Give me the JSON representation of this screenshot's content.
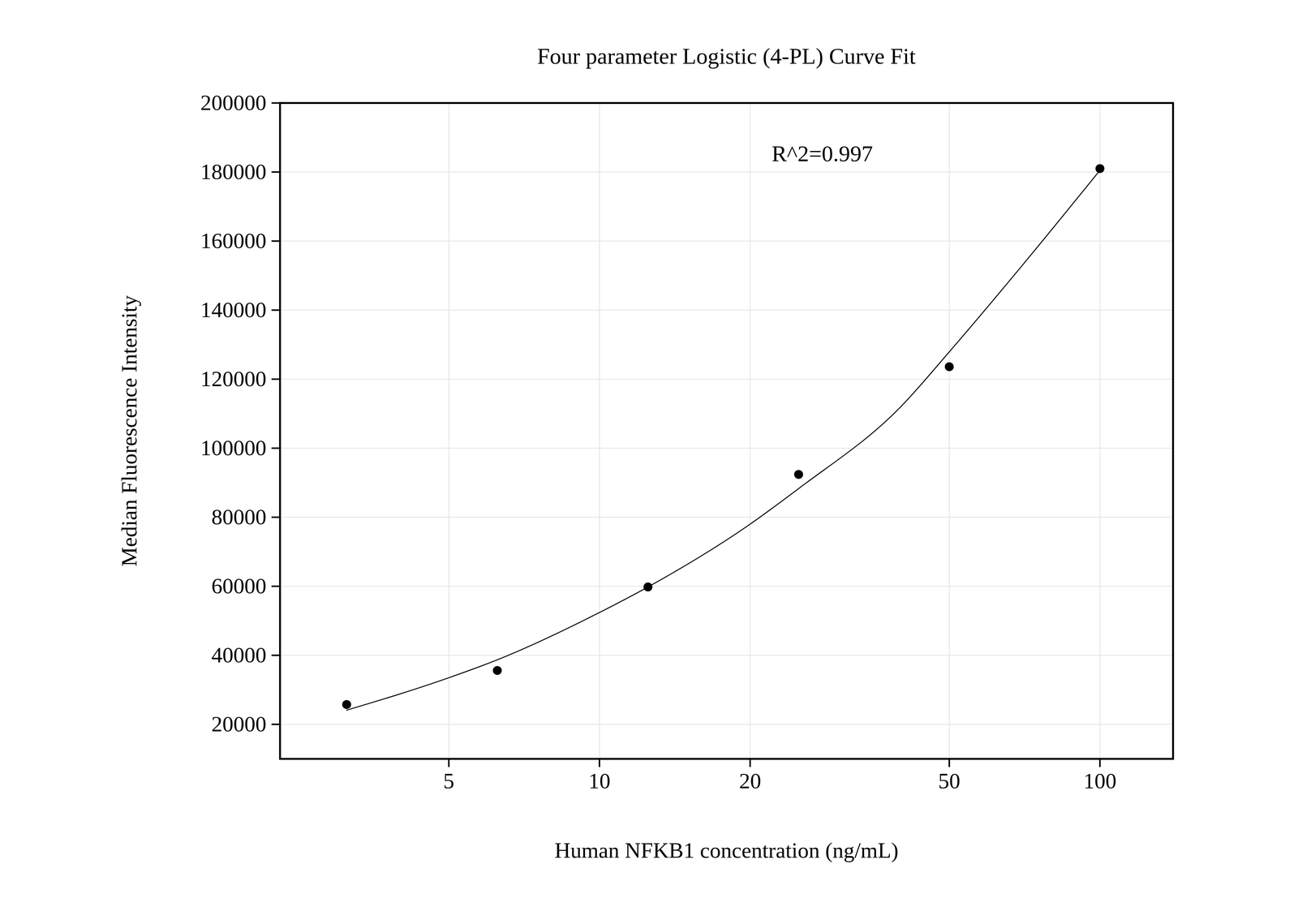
{
  "chart_data": {
    "type": "scatter",
    "title": "Four parameter Logistic (4-PL) Curve Fit",
    "x_label": "Human NFKB1 concentration (ng/mL)",
    "y_label": "Median Fluorescence Intensity",
    "annotation": "R^2=0.997",
    "log": "x",
    "grid": true,
    "xlim": [
      2.3,
      140
    ],
    "xticks": [
      5,
      10,
      20,
      50,
      100
    ],
    "ylim": [
      10000,
      200000
    ],
    "yticks": [
      20000,
      40000,
      60000,
      80000,
      100000,
      120000,
      140000,
      160000,
      180000,
      200000
    ],
    "series": [
      {
        "type": "scatter",
        "marker": "circle",
        "color": "#000000",
        "x": [
          3.125,
          6.25,
          12.5,
          25,
          50,
          100
        ],
        "values": [
          25750,
          35600,
          59800,
          92400,
          123600,
          181000
        ]
      },
      {
        "type": "line",
        "line_style": "solid",
        "color": "#000000",
        "x": [
          3.125,
          5,
          6.25,
          10,
          12.5,
          20,
          25,
          40,
          50,
          70,
          100
        ],
        "values": [
          24100,
          33500,
          38700,
          52400,
          59800,
          78000,
          88300,
          112000,
          127900,
          153000,
          180500
        ]
      }
    ]
  }
}
